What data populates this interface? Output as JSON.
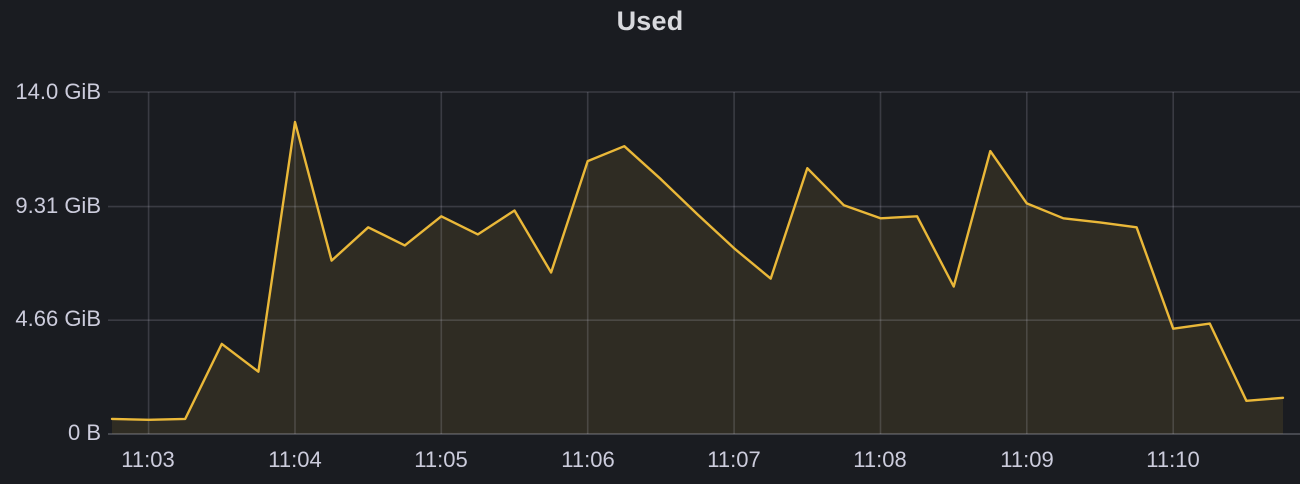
{
  "panel": {
    "title": "Used"
  },
  "colors": {
    "background": "#1a1c21",
    "line": "#EAB839",
    "fill": "rgba(234,184,57,0.10)",
    "grid": "rgba(204,204,220,0.18)",
    "axis_line": "rgba(204,204,220,0.25)",
    "axis_text": "#ccccdc",
    "title_text": "#d8d9dd"
  },
  "chart_data": {
    "type": "area",
    "title": "Used",
    "unit": "bytes (IEC)",
    "grid": true,
    "legend": "none",
    "ylim_gib": [
      0,
      14.0
    ],
    "x": [
      "11:02:45",
      "11:03:00",
      "11:03:15",
      "11:03:30",
      "11:03:45",
      "11:04:00",
      "11:04:15",
      "11:04:30",
      "11:04:45",
      "11:05:00",
      "11:05:15",
      "11:05:30",
      "11:05:45",
      "11:06:00",
      "11:06:15",
      "11:06:30",
      "11:06:45",
      "11:07:00",
      "11:07:15",
      "11:07:30",
      "11:07:45",
      "11:08:00",
      "11:08:15",
      "11:08:30",
      "11:08:45",
      "11:09:00",
      "11:09:15",
      "11:09:30",
      "11:09:45",
      "11:10:00",
      "11:10:15",
      "11:10:30",
      "11:10:45"
    ],
    "series": [
      {
        "name": "Used",
        "color": "#EAB839",
        "values_gib": [
          0.62,
          0.58,
          0.62,
          3.69,
          2.55,
          12.77,
          7.1,
          8.46,
          7.72,
          8.91,
          8.17,
          9.15,
          6.61,
          11.17,
          11.78,
          10.43,
          8.99,
          7.6,
          6.36,
          10.88,
          9.36,
          8.83,
          8.91,
          6.04,
          11.58,
          9.44,
          8.83,
          8.66,
          8.46,
          4.31,
          4.52,
          1.36,
          1.48
        ]
      }
    ],
    "y_ticks": [
      {
        "label": "0 B",
        "gib": 0
      },
      {
        "label": "4.66 GiB",
        "gib": 4.66
      },
      {
        "label": "9.31 GiB",
        "gib": 9.31
      },
      {
        "label": "14.0 GiB",
        "gib": 14.0
      }
    ],
    "x_tick_labels": [
      "11:03",
      "11:04",
      "11:05",
      "11:06",
      "11:07",
      "11:08",
      "11:09",
      "11:10"
    ]
  }
}
